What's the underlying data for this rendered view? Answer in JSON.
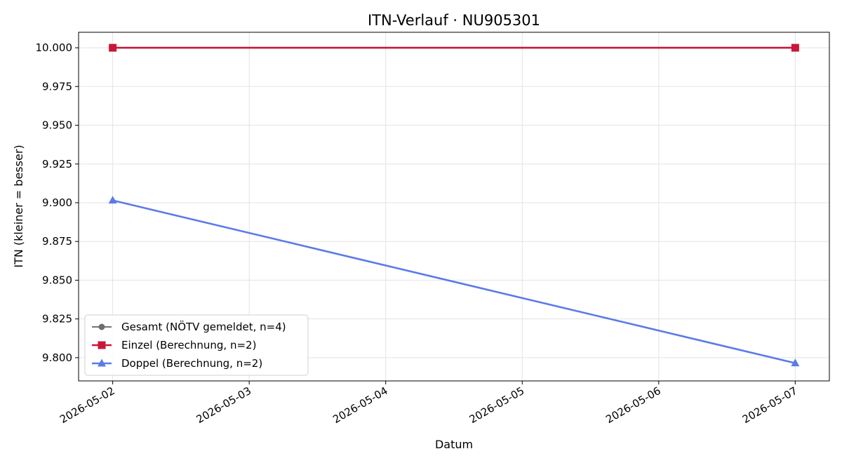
{
  "chart_data": {
    "type": "line",
    "title": "ITN-Verlauf · NU905301",
    "xlabel": "Datum",
    "ylabel": "ITN  (kleiner = besser)",
    "x_ticks": [
      "2026-05-02",
      "2026-05-03",
      "2026-05-04",
      "2026-05-05",
      "2026-05-06",
      "2026-05-07"
    ],
    "xlim": [
      "2026-05-01T18:00",
      "2026-05-07T06:00"
    ],
    "ylim": [
      9.785,
      10.01
    ],
    "y_ticks": [
      9.8,
      9.825,
      9.85,
      9.875,
      9.9,
      9.925,
      9.95,
      9.975,
      10.0
    ],
    "y_tick_labels": [
      "9.800",
      "9.825",
      "9.850",
      "9.875",
      "9.900",
      "9.925",
      "9.950",
      "9.975",
      "10.000"
    ],
    "grid": true,
    "legend_position": "lower-left",
    "series": [
      {
        "name": "Gesamt (NÖTV gemeldet, n=4)",
        "color": "#6e6e6e",
        "marker": "circle",
        "points": []
      },
      {
        "name": "Einzel (Berechnung, n=2)",
        "color": "#c8173a",
        "marker": "square",
        "points": [
          {
            "x": "2026-05-02",
            "y": 10.0
          },
          {
            "x": "2026-05-07",
            "y": 10.0
          }
        ]
      },
      {
        "name": "Doppel (Berechnung, n=2)",
        "color": "#5b7be8",
        "marker": "triangle",
        "points": [
          {
            "x": "2026-05-02",
            "y": 9.9015
          },
          {
            "x": "2026-05-07",
            "y": 9.7965
          }
        ]
      }
    ]
  }
}
